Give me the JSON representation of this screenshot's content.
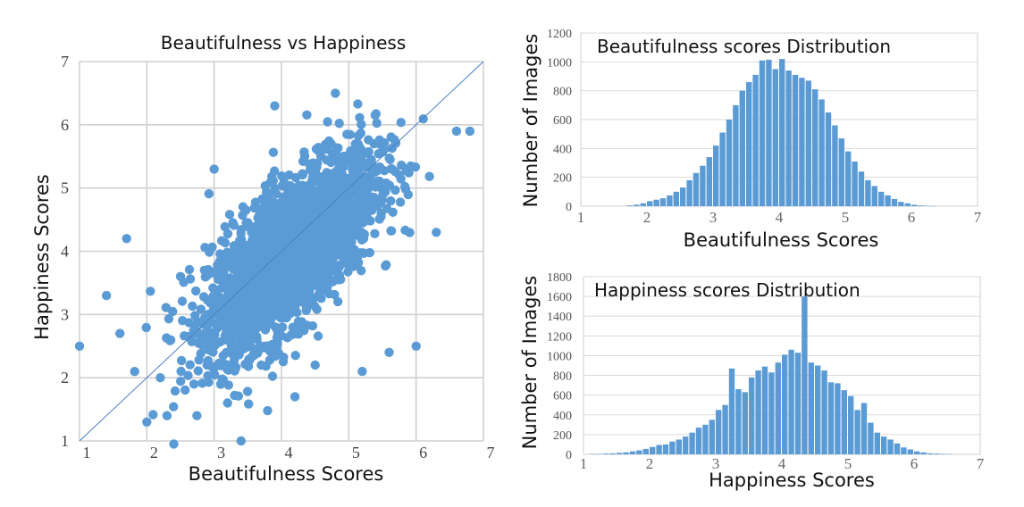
{
  "colors": {
    "series": "#5b9bd5",
    "line": "#4a7fc0"
  },
  "chart_data": [
    {
      "type": "scatter",
      "title": "Beautifulness vs Happiness",
      "xlabel": "Beautifulness Scores",
      "ylabel": "Happiness Scores",
      "xlim": [
        1,
        7
      ],
      "ylim": [
        1,
        7
      ],
      "x_ticks": [
        "1",
        "2",
        "3",
        "4",
        "5",
        "6",
        "7"
      ],
      "y_ticks": [
        "1",
        "2",
        "3",
        "4",
        "5",
        "6",
        "7"
      ],
      "grid": true,
      "reference_line": [
        [
          1,
          1
        ],
        [
          7,
          7
        ]
      ],
      "points_sample": [
        [
          1.0,
          2.5
        ],
        [
          1.4,
          3.3
        ],
        [
          1.6,
          2.7
        ],
        [
          1.7,
          4.2
        ],
        [
          2.0,
          1.3
        ],
        [
          2.2,
          2.0
        ],
        [
          2.3,
          1.4
        ],
        [
          2.4,
          0.95
        ],
        [
          2.5,
          3.6
        ],
        [
          2.7,
          1.9
        ],
        [
          3.0,
          5.3
        ],
        [
          3.2,
          1.6
        ],
        [
          3.4,
          1.0
        ],
        [
          3.7,
          2.2
        ],
        [
          3.9,
          6.3
        ],
        [
          4.2,
          1.7
        ],
        [
          4.5,
          2.2
        ],
        [
          4.8,
          6.5
        ],
        [
          5.2,
          2.1
        ],
        [
          5.6,
          2.4
        ],
        [
          6.0,
          2.5
        ],
        [
          6.3,
          4.3
        ],
        [
          6.6,
          5.9
        ],
        [
          6.8,
          5.9
        ]
      ]
    },
    {
      "type": "bar",
      "title": "Beautifulness scores Distribution",
      "xlabel": "Beautifulness Scores",
      "ylabel": "Number of Images",
      "xlim": [
        1,
        7
      ],
      "ylim": [
        0,
        1200
      ],
      "x_ticks": [
        "1",
        "2",
        "3",
        "4",
        "5",
        "6",
        "7"
      ],
      "y_ticks": [
        "0",
        "200",
        "400",
        "600",
        "800",
        "1000",
        "1200"
      ],
      "bin_start": 1.7,
      "bin_width": 0.1,
      "values": [
        5,
        10,
        20,
        35,
        45,
        55,
        75,
        100,
        130,
        180,
        230,
        280,
        340,
        420,
        510,
        600,
        700,
        800,
        860,
        910,
        1010,
        1015,
        950,
        1020,
        940,
        910,
        890,
        870,
        810,
        740,
        650,
        560,
        470,
        380,
        310,
        240,
        180,
        140,
        100,
        75,
        50,
        30,
        20,
        10,
        5,
        3,
        2
      ]
    },
    {
      "type": "bar",
      "title": "Happiness scores Distribution",
      "xlabel": "Happiness Scores",
      "ylabel": "Number of Images",
      "xlim": [
        1,
        7
      ],
      "ylim": [
        0,
        1800
      ],
      "x_ticks": [
        "1",
        "2",
        "3",
        "4",
        "5",
        "6",
        "7"
      ],
      "y_ticks": [
        "0",
        "200",
        "400",
        "600",
        "800",
        "1000",
        "1200",
        "1400",
        "1600",
        "1800"
      ],
      "bin_start": 1.1,
      "bin_width": 0.1,
      "values": [
        5,
        5,
        8,
        10,
        15,
        20,
        30,
        40,
        55,
        75,
        95,
        100,
        130,
        150,
        180,
        220,
        270,
        300,
        350,
        450,
        500,
        870,
        660,
        630,
        780,
        850,
        890,
        830,
        930,
        1010,
        1060,
        1030,
        1600,
        930,
        900,
        850,
        730,
        720,
        650,
        590,
        450,
        520,
        320,
        220,
        180,
        150,
        110,
        70,
        50,
        30,
        20,
        10,
        8,
        5,
        3
      ]
    }
  ]
}
